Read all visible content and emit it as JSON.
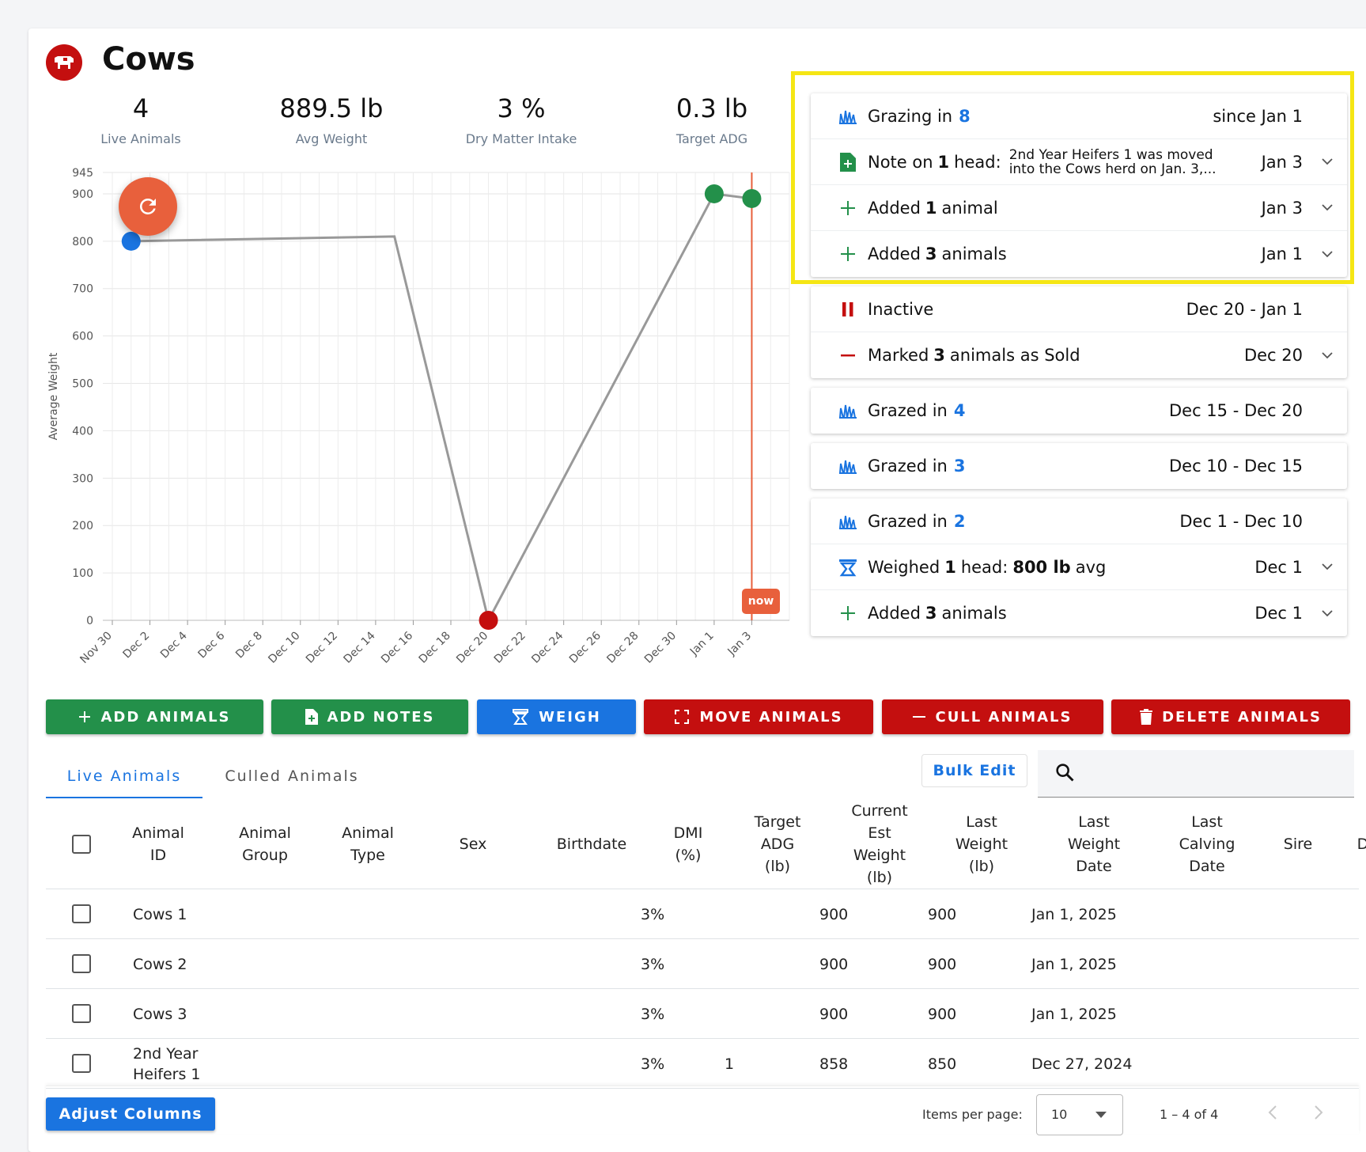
{
  "herd": {
    "title": "Cows"
  },
  "stats": [
    {
      "value": "4",
      "label": "Live Animals"
    },
    {
      "value": "889.5 lb",
      "label": "Avg Weight"
    },
    {
      "value": "3 %",
      "label": "Dry Matter Intake"
    },
    {
      "value": "0.3 lb",
      "label": "Target ADG"
    }
  ],
  "chart_data": {
    "type": "line",
    "ylabel": "Average Weight",
    "ylim": [
      0,
      945
    ],
    "yticks": [
      0,
      100,
      200,
      300,
      400,
      500,
      600,
      700,
      800,
      900,
      945
    ],
    "xticks": [
      "Nov 30",
      "Dec 2",
      "Dec 4",
      "Dec 6",
      "Dec 8",
      "Dec 10",
      "Dec 12",
      "Dec 14",
      "Dec 16",
      "Dec 18",
      "Dec 20",
      "Dec 22",
      "Dec 24",
      "Dec 26",
      "Dec 28",
      "Dec 30",
      "Jan 1",
      "Jan 3"
    ],
    "points": [
      {
        "day": 1,
        "value": 800,
        "color": "#1a74e0"
      },
      {
        "day": 15,
        "value": 810,
        "color": null
      },
      {
        "day": 20,
        "value": 0,
        "color": "#c40f0f"
      },
      {
        "day": 32,
        "value": 900,
        "color": "#23904a"
      },
      {
        "day": 34,
        "value": 890,
        "color": "#23904a"
      }
    ],
    "now_day": 34,
    "now_label": "now"
  },
  "timeline": [
    {
      "events": [
        {
          "icon": "grass",
          "prefix": "Grazing in",
          "bold": "",
          "num": "8",
          "suffix": "",
          "date": "since Jan 1",
          "expandable": false
        },
        {
          "icon": "note",
          "prefix": "Note on",
          "bold": "1",
          "num": "",
          "suffix": "head:",
          "note": "2nd Year Heifers 1 was moved into the Cows herd on Jan. 3,...",
          "date": "Jan 3",
          "expandable": true
        },
        {
          "icon": "plus",
          "prefix": "Added",
          "bold": "1",
          "num": "",
          "suffix": "animal",
          "date": "Jan 3",
          "expandable": true
        },
        {
          "icon": "plus",
          "prefix": "Added",
          "bold": "3",
          "num": "",
          "suffix": "animals",
          "date": "Jan 1",
          "expandable": true
        }
      ]
    },
    {
      "events": [
        {
          "icon": "pause",
          "prefix": "Inactive",
          "bold": "",
          "num": "",
          "suffix": "",
          "date": "Dec 20 - Jan 1",
          "expandable": false
        },
        {
          "icon": "minus",
          "prefix": "Marked",
          "bold": "3",
          "num": "",
          "suffix": "animals as Sold",
          "date": "Dec 20",
          "expandable": true
        }
      ]
    },
    {
      "events": [
        {
          "icon": "grass",
          "prefix": "Grazed in",
          "bold": "",
          "num": "4",
          "suffix": "",
          "date": "Dec 15 - Dec 20",
          "expandable": false
        }
      ]
    },
    {
      "events": [
        {
          "icon": "grass",
          "prefix": "Grazed in",
          "bold": "",
          "num": "3",
          "suffix": "",
          "date": "Dec 10 - Dec 15",
          "expandable": false
        }
      ]
    },
    {
      "events": [
        {
          "icon": "grass",
          "prefix": "Grazed in",
          "bold": "",
          "num": "2",
          "suffix": "",
          "date": "Dec 1 - Dec 10",
          "expandable": false
        },
        {
          "icon": "scale",
          "prefix": "Weighed",
          "bold": "1",
          "num": "",
          "suffix": "head:",
          "bold2": "800 lb",
          "suffix2": "avg",
          "date": "Dec 1",
          "expandable": true
        },
        {
          "icon": "plus",
          "prefix": "Added",
          "bold": "3",
          "num": "",
          "suffix": "animals",
          "date": "Dec 1",
          "expandable": true
        }
      ]
    }
  ],
  "actions": {
    "add_animals": "ADD ANIMALS",
    "add_notes": "ADD NOTES",
    "weigh": "WEIGH",
    "move_animals": "MOVE ANIMALS",
    "cull_animals": "CULL ANIMALS",
    "delete_animals": "DELETE ANIMALS"
  },
  "tabs": {
    "live": "Live Animals",
    "culled": "Culled Animals"
  },
  "bulk_edit": "Bulk Edit",
  "table": {
    "columns": [
      "Animal\nID",
      "Animal\nGroup",
      "Animal\nType",
      "Sex",
      "Birthdate",
      "DMI\n(%)",
      "Target\nADG\n(lb)",
      "Current\nEst\nWeight\n(lb)",
      "Last\nWeight\n(lb)",
      "Last\nWeight\nDate",
      "Last\nCalving\nDate",
      "Sire",
      "D"
    ],
    "rows": [
      {
        "id": "Cows 1",
        "dmi": "3%",
        "adg": "",
        "est": "900",
        "last": "900",
        "date": "Jan 1, 2025"
      },
      {
        "id": "Cows 2",
        "dmi": "3%",
        "adg": "",
        "est": "900",
        "last": "900",
        "date": "Jan 1, 2025"
      },
      {
        "id": "Cows 3",
        "dmi": "3%",
        "adg": "",
        "est": "900",
        "last": "900",
        "date": "Jan 1, 2025"
      },
      {
        "id": "2nd Year\nHeifers 1",
        "dmi": "3%",
        "adg": "1",
        "est": "858",
        "last": "850",
        "date": "Dec 27, 2024"
      }
    ]
  },
  "footer": {
    "adjust_columns": "Adjust Columns",
    "items_per_page_label": "Items per page:",
    "items_per_page": "10",
    "range": "1 – 4 of 4"
  }
}
